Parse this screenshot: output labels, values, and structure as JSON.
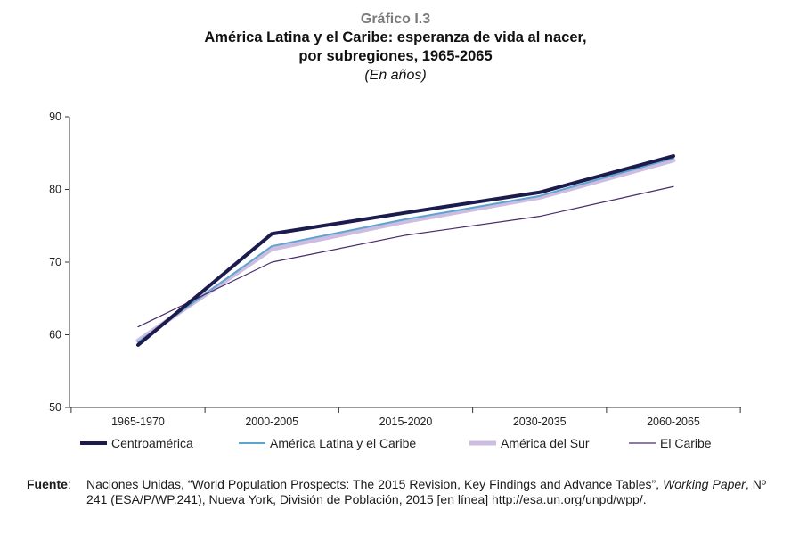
{
  "figure_label": "Gráfico I.3",
  "title_line1": "América Latina y el Caribe: esperanza de vida al nacer,",
  "title_line2": "por subregiones, 1965-2065",
  "subtitle": "(En años)",
  "source": {
    "label": "Fuente",
    "sep": ":",
    "text_part1": "Naciones Unidas, “World Population Prospects: The 2015 Revision, Key Findings and Advance Tables”,",
    "text_italic": "Working Paper",
    "text_part2": ", Nº 241 (ESA/P/WP.241), Nueva York, División de Población, 2015 [en línea] http://esa.un.org/unpd/wpp/."
  },
  "chart_data": {
    "type": "line",
    "categories": [
      "1965-1970",
      "2000-2005",
      "2015-2020",
      "2030-2035",
      "2060-2065"
    ],
    "ylim": [
      50,
      90
    ],
    "yticks": [
      50,
      60,
      70,
      80,
      90
    ],
    "grid": false,
    "legend_position": "bottom",
    "xlabel": "",
    "ylabel": "",
    "series": [
      {
        "name": "Centroamérica",
        "values": [
          58.6,
          73.9,
          76.8,
          79.6,
          84.6
        ],
        "color": "#1b1b4d"
      },
      {
        "name": "América Latina y el Caribe",
        "values": [
          59.0,
          72.2,
          75.9,
          79.1,
          84.3
        ],
        "color": "#5fa3cf"
      },
      {
        "name": "América del Sur",
        "values": [
          59.2,
          71.8,
          75.6,
          78.9,
          84.0
        ],
        "color": "#cdbde0"
      },
      {
        "name": "El Caribe",
        "values": [
          61.1,
          70.0,
          73.7,
          76.3,
          80.4
        ],
        "color": "#4a2a6a"
      }
    ]
  }
}
